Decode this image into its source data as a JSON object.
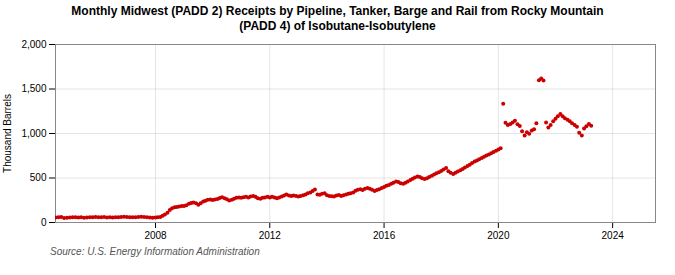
{
  "chart_data": {
    "type": "scatter",
    "title": "Monthly Midwest (PADD 2) Receipts by Pipeline, Tanker, Barge and Rail from Rocky Mountain\n(PADD 4) of Isobutane-Isobutylene",
    "ylabel": "Thousand Barrels",
    "source": "Source: U.S. Energy Information Administration",
    "color": "#CC0000",
    "grid": true,
    "xlim": [
      2004.5,
      2025.5
    ],
    "xticks": [
      2008,
      2012,
      2016,
      2020,
      2024
    ],
    "ylim": [
      0,
      2000
    ],
    "yticks": [
      0,
      500,
      {
        "value": 1000,
        "label": "1,000"
      },
      {
        "value": 1500,
        "label": "1,500"
      },
      {
        "value": 2000,
        "label": "2,000"
      }
    ],
    "x": [
      2004.5,
      2004.6,
      2004.7,
      2004.8,
      2004.9,
      2005.0,
      2005.1,
      2005.2,
      2005.3,
      2005.4,
      2005.5,
      2005.6,
      2005.7,
      2005.8,
      2005.9,
      2006.0,
      2006.1,
      2006.2,
      2006.3,
      2006.4,
      2006.5,
      2006.6,
      2006.7,
      2006.8,
      2006.9,
      2007.0,
      2007.1,
      2007.2,
      2007.3,
      2007.4,
      2007.5,
      2007.6,
      2007.7,
      2007.8,
      2007.9,
      2008.0,
      2008.08,
      2008.17,
      2008.25,
      2008.33,
      2008.42,
      2008.5,
      2008.58,
      2008.67,
      2008.75,
      2008.83,
      2008.92,
      2009.0,
      2009.08,
      2009.17,
      2009.25,
      2009.33,
      2009.42,
      2009.5,
      2009.58,
      2009.67,
      2009.75,
      2009.83,
      2009.92,
      2010.0,
      2010.08,
      2010.17,
      2010.25,
      2010.33,
      2010.42,
      2010.5,
      2010.58,
      2010.67,
      2010.75,
      2010.83,
      2010.92,
      2011.0,
      2011.08,
      2011.17,
      2011.25,
      2011.33,
      2011.42,
      2011.5,
      2011.58,
      2011.67,
      2011.75,
      2011.83,
      2011.92,
      2012.0,
      2012.08,
      2012.17,
      2012.25,
      2012.33,
      2012.42,
      2012.5,
      2012.58,
      2012.67,
      2012.75,
      2012.83,
      2012.92,
      2013.0,
      2013.08,
      2013.17,
      2013.25,
      2013.33,
      2013.42,
      2013.5,
      2013.58,
      2013.67,
      2013.75,
      2013.83,
      2013.92,
      2014.0,
      2014.08,
      2014.17,
      2014.25,
      2014.33,
      2014.42,
      2014.5,
      2014.58,
      2014.67,
      2014.75,
      2014.83,
      2014.92,
      2015.0,
      2015.08,
      2015.17,
      2015.25,
      2015.33,
      2015.42,
      2015.5,
      2015.58,
      2015.67,
      2015.75,
      2015.83,
      2015.92,
      2016.0,
      2016.08,
      2016.17,
      2016.25,
      2016.33,
      2016.42,
      2016.5,
      2016.58,
      2016.67,
      2016.75,
      2016.83,
      2016.92,
      2017.0,
      2017.08,
      2017.17,
      2017.25,
      2017.33,
      2017.42,
      2017.5,
      2017.58,
      2017.67,
      2017.75,
      2017.83,
      2017.92,
      2018.0,
      2018.08,
      2018.17,
      2018.25,
      2018.33,
      2018.42,
      2018.5,
      2018.58,
      2018.67,
      2018.75,
      2018.83,
      2018.92,
      2019.0,
      2019.08,
      2019.17,
      2019.25,
      2019.33,
      2019.42,
      2019.5,
      2019.58,
      2019.67,
      2019.75,
      2019.83,
      2019.92,
      2020.0,
      2020.08,
      2020.17,
      2020.25,
      2020.33,
      2020.42,
      2020.5,
      2020.58,
      2020.67,
      2020.75,
      2020.83,
      2020.92,
      2021.0,
      2021.08,
      2021.17,
      2021.25,
      2021.33,
      2021.42,
      2021.5,
      2021.58,
      2021.67,
      2021.75,
      2021.83,
      2021.92,
      2022.0,
      2022.08,
      2022.17,
      2022.25,
      2022.33,
      2022.42,
      2022.5,
      2022.58,
      2022.67,
      2022.75,
      2022.83,
      2022.92,
      2023.0,
      2023.08,
      2023.17,
      2023.25
    ],
    "values": [
      55,
      58,
      62,
      50,
      52,
      55,
      58,
      60,
      55,
      58,
      52,
      55,
      60,
      58,
      62,
      60,
      58,
      62,
      55,
      58,
      55,
      58,
      60,
      62,
      65,
      62,
      58,
      60,
      58,
      62,
      65,
      62,
      58,
      55,
      52,
      55,
      58,
      62,
      75,
      90,
      110,
      140,
      160,
      170,
      175,
      180,
      185,
      185,
      195,
      210,
      220,
      225,
      215,
      200,
      215,
      235,
      245,
      255,
      258,
      252,
      258,
      265,
      275,
      285,
      272,
      260,
      248,
      255,
      268,
      278,
      282,
      278,
      285,
      290,
      282,
      292,
      298,
      288,
      272,
      268,
      278,
      282,
      288,
      282,
      288,
      282,
      272,
      282,
      292,
      302,
      315,
      302,
      298,
      302,
      298,
      292,
      298,
      305,
      315,
      328,
      338,
      355,
      370,
      315,
      312,
      322,
      328,
      305,
      298,
      295,
      292,
      302,
      308,
      298,
      305,
      315,
      322,
      330,
      338,
      358,
      368,
      375,
      365,
      378,
      388,
      378,
      368,
      355,
      365,
      375,
      388,
      398,
      412,
      422,
      435,
      448,
      462,
      455,
      442,
      435,
      448,
      462,
      478,
      492,
      505,
      518,
      510,
      498,
      488,
      498,
      512,
      525,
      538,
      552,
      565,
      578,
      595,
      612,
      575,
      558,
      545,
      558,
      572,
      588,
      602,
      618,
      635,
      650,
      668,
      685,
      698,
      712,
      725,
      738,
      752,
      765,
      778,
      792,
      805,
      820,
      835,
      1335,
      1120,
      1095,
      1108,
      1125,
      1142,
      1105,
      1085,
      1025,
      978,
      1015,
      998,
      1035,
      1048,
      1115,
      1598,
      1618,
      1595,
      1125,
      1068,
      1095,
      1138,
      1165,
      1195,
      1218,
      1195,
      1172,
      1155,
      1138,
      1115,
      1095,
      1075,
      1008,
      978,
      1055,
      1082,
      1108,
      1088
    ]
  }
}
